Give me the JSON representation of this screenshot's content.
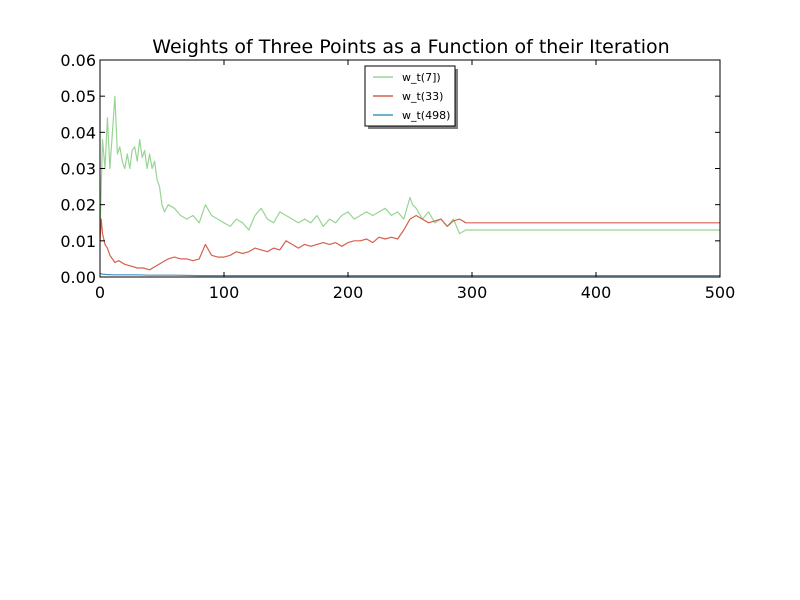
{
  "chart_data": {
    "type": "line",
    "title": "Weights of Three Points as a Function of their Iteration",
    "xlabel": "",
    "ylabel": "",
    "xlim": [
      0,
      500
    ],
    "ylim": [
      0,
      0.06
    ],
    "x_ticks": [
      0,
      100,
      200,
      300,
      400,
      500
    ],
    "x_tick_labels": [
      "0",
      "100",
      "200",
      "300",
      "400",
      "500"
    ],
    "y_ticks": [
      0,
      0.01,
      0.02,
      0.03,
      0.04,
      0.05,
      0.06
    ],
    "y_tick_labels": [
      "0.00",
      "0.01",
      "0.02",
      "0.03",
      "0.04",
      "0.05",
      "0.06"
    ],
    "grid": false,
    "legend_position": "top-center",
    "series": [
      {
        "name": "w_t(7])",
        "color": "#98d594",
        "x": [
          0,
          2,
          4,
          6,
          8,
          10,
          12,
          14,
          16,
          18,
          20,
          22,
          24,
          26,
          28,
          30,
          32,
          34,
          36,
          38,
          40,
          42,
          44,
          46,
          48,
          50,
          52,
          55,
          60,
          65,
          70,
          75,
          80,
          85,
          90,
          95,
          100,
          105,
          110,
          115,
          120,
          125,
          130,
          135,
          140,
          145,
          150,
          155,
          160,
          165,
          170,
          175,
          180,
          185,
          190,
          195,
          200,
          205,
          210,
          215,
          220,
          225,
          230,
          235,
          240,
          245,
          250,
          252,
          255,
          260,
          265,
          270,
          275,
          280,
          285,
          290,
          295,
          298,
          300,
          350,
          400,
          450,
          500
        ],
        "y": [
          0.012,
          0.038,
          0.03,
          0.044,
          0.03,
          0.04,
          0.05,
          0.034,
          0.036,
          0.032,
          0.03,
          0.034,
          0.03,
          0.035,
          0.036,
          0.032,
          0.038,
          0.033,
          0.035,
          0.03,
          0.034,
          0.03,
          0.032,
          0.027,
          0.025,
          0.02,
          0.018,
          0.02,
          0.019,
          0.017,
          0.016,
          0.017,
          0.015,
          0.02,
          0.017,
          0.016,
          0.015,
          0.014,
          0.016,
          0.015,
          0.013,
          0.017,
          0.019,
          0.016,
          0.015,
          0.018,
          0.017,
          0.016,
          0.015,
          0.016,
          0.015,
          0.017,
          0.014,
          0.016,
          0.015,
          0.017,
          0.018,
          0.016,
          0.017,
          0.018,
          0.017,
          0.018,
          0.019,
          0.017,
          0.018,
          0.016,
          0.022,
          0.02,
          0.019,
          0.016,
          0.018,
          0.015,
          0.016,
          0.014,
          0.016,
          0.012,
          0.013,
          0.013,
          0.013,
          0.013,
          0.013,
          0.013,
          0.013
        ]
      },
      {
        "name": "w_t(33)",
        "color": "#d6604d",
        "x": [
          0,
          1,
          2,
          4,
          6,
          8,
          10,
          12,
          15,
          20,
          25,
          30,
          35,
          40,
          45,
          50,
          55,
          60,
          65,
          70,
          75,
          80,
          85,
          90,
          95,
          100,
          105,
          110,
          115,
          120,
          125,
          130,
          135,
          140,
          145,
          150,
          155,
          160,
          165,
          170,
          175,
          180,
          185,
          190,
          195,
          200,
          205,
          210,
          215,
          220,
          225,
          230,
          235,
          240,
          245,
          250,
          255,
          260,
          265,
          270,
          275,
          280,
          285,
          290,
          295,
          298,
          300,
          350,
          400,
          450,
          500
        ],
        "y": [
          0.01,
          0.016,
          0.012,
          0.009,
          0.008,
          0.006,
          0.005,
          0.004,
          0.0045,
          0.0035,
          0.003,
          0.0025,
          0.0025,
          0.002,
          0.003,
          0.004,
          0.005,
          0.0055,
          0.005,
          0.005,
          0.0045,
          0.005,
          0.009,
          0.006,
          0.0055,
          0.0055,
          0.006,
          0.007,
          0.0065,
          0.007,
          0.008,
          0.0075,
          0.007,
          0.008,
          0.0075,
          0.01,
          0.009,
          0.008,
          0.009,
          0.0085,
          0.009,
          0.0095,
          0.009,
          0.0095,
          0.0085,
          0.0095,
          0.01,
          0.01,
          0.0105,
          0.0095,
          0.011,
          0.0105,
          0.011,
          0.0105,
          0.013,
          0.016,
          0.017,
          0.016,
          0.015,
          0.0155,
          0.016,
          0.014,
          0.0155,
          0.016,
          0.015,
          0.015,
          0.015,
          0.015,
          0.015,
          0.015,
          0.015
        ]
      },
      {
        "name": "w_t(498)",
        "color": "#4393c3",
        "x": [
          0,
          2,
          5,
          10,
          20,
          30,
          40,
          60,
          80,
          100,
          150,
          200,
          250,
          300,
          350,
          400,
          450,
          500
        ],
        "y": [
          0.001,
          0.0008,
          0.0007,
          0.0006,
          0.0006,
          0.0006,
          0.0005,
          0.0005,
          0.0004,
          0.0004,
          0.0004,
          0.0004,
          0.0004,
          0.0004,
          0.0004,
          0.0004,
          0.0004,
          0.0004
        ]
      }
    ]
  }
}
